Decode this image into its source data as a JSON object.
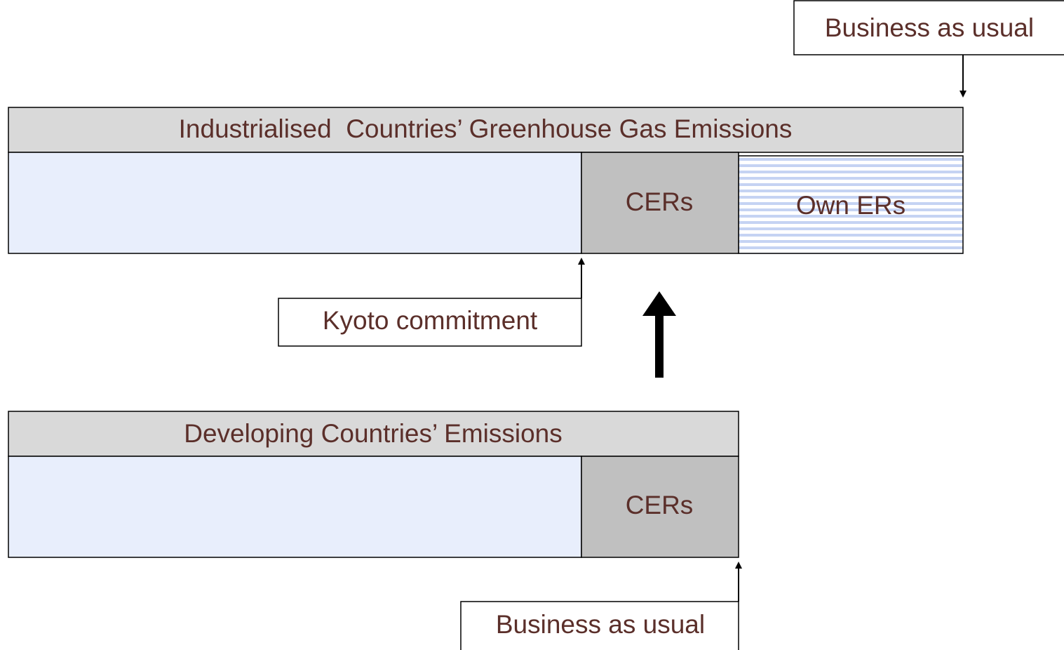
{
  "business_as_usual_top": "Business as usual",
  "industrialised": {
    "title": "Industrialised  Countries’ Greenhouse Gas Emissions",
    "cers": "CERs",
    "own_ers": "Own ERs"
  },
  "kyoto_commitment": "Kyoto commitment",
  "developing": {
    "title": "Developing Countries’ Emissions",
    "cers": "CERs"
  },
  "business_as_usual_bottom": "Business as usual"
}
